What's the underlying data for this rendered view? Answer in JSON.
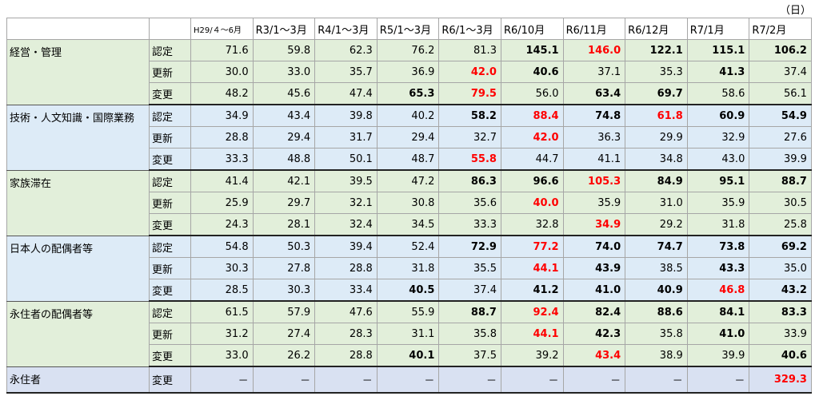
{
  "unit_label": "（日）",
  "headers": [
    "",
    "",
    "H29/４～6月",
    "R3/1～3月",
    "R4/1～3月",
    "R5/1～3月",
    "R6/1～3月",
    "R6/10月",
    "R6/11月",
    "R6/12月",
    "R7/1月",
    "R7/2月"
  ],
  "groups": [
    {
      "category": "経営・管理",
      "color": "green",
      "rows": [
        {
          "type": "認定",
          "values": [
            "71.6",
            "59.8",
            "62.3",
            "76.2",
            "81.3",
            "145.1",
            "146.0",
            "122.1",
            "115.1",
            "106.2"
          ],
          "styles": [
            "",
            "",
            "",
            "",
            "",
            "b",
            "r",
            "b",
            "b",
            "b"
          ]
        },
        {
          "type": "更新",
          "values": [
            "30.0",
            "33.0",
            "35.7",
            "36.9",
            "42.0",
            "40.6",
            "37.1",
            "35.3",
            "41.3",
            "37.4"
          ],
          "styles": [
            "",
            "",
            "",
            "",
            "r",
            "b",
            "",
            "",
            "b",
            ""
          ]
        },
        {
          "type": "変更",
          "values": [
            "48.2",
            "45.6",
            "47.4",
            "65.3",
            "79.5",
            "56.0",
            "63.4",
            "69.7",
            "58.6",
            "56.1"
          ],
          "styles": [
            "",
            "",
            "",
            "b",
            "r",
            "",
            "b",
            "b",
            "",
            ""
          ]
        }
      ]
    },
    {
      "category": "技術・人文知識・国際業務",
      "color": "blue",
      "rows": [
        {
          "type": "認定",
          "values": [
            "34.9",
            "43.4",
            "39.8",
            "40.2",
            "58.2",
            "88.4",
            "74.8",
            "61.8",
            "60.9",
            "54.9"
          ],
          "styles": [
            "",
            "",
            "",
            "",
            "b",
            "r",
            "b",
            "r",
            "b",
            "b"
          ]
        },
        {
          "type": "更新",
          "values": [
            "28.8",
            "29.4",
            "31.7",
            "29.4",
            "32.7",
            "42.0",
            "36.3",
            "29.9",
            "32.9",
            "27.6"
          ],
          "styles": [
            "",
            "",
            "",
            "",
            "",
            "r",
            "",
            "",
            "",
            ""
          ]
        },
        {
          "type": "変更",
          "values": [
            "33.3",
            "48.8",
            "50.1",
            "48.7",
            "55.8",
            "44.7",
            "41.1",
            "34.8",
            "43.0",
            "39.9"
          ],
          "styles": [
            "",
            "",
            "",
            "",
            "r",
            "",
            "",
            "",
            "",
            ""
          ]
        }
      ]
    },
    {
      "category": "家族滞在",
      "color": "green",
      "rows": [
        {
          "type": "認定",
          "values": [
            "41.4",
            "42.1",
            "39.5",
            "47.2",
            "86.3",
            "96.6",
            "105.3",
            "84.9",
            "95.1",
            "88.7"
          ],
          "styles": [
            "",
            "",
            "",
            "",
            "b",
            "b",
            "r",
            "b",
            "b",
            "b"
          ]
        },
        {
          "type": "更新",
          "values": [
            "25.9",
            "29.7",
            "32.1",
            "30.8",
            "35.6",
            "40.0",
            "35.9",
            "31.0",
            "35.9",
            "30.5"
          ],
          "styles": [
            "",
            "",
            "",
            "",
            "",
            "r",
            "",
            "",
            "",
            ""
          ]
        },
        {
          "type": "変更",
          "values": [
            "24.3",
            "28.1",
            "32.4",
            "34.5",
            "33.3",
            "32.8",
            "34.9",
            "29.2",
            "31.8",
            "25.8"
          ],
          "styles": [
            "",
            "",
            "",
            "",
            "",
            "",
            "r",
            "",
            "",
            ""
          ]
        }
      ]
    },
    {
      "category": "日本人の配偶者等",
      "color": "blue",
      "rows": [
        {
          "type": "認定",
          "values": [
            "54.8",
            "50.3",
            "39.4",
            "52.4",
            "72.9",
            "77.2",
            "74.0",
            "74.7",
            "73.8",
            "69.2"
          ],
          "styles": [
            "",
            "",
            "",
            "",
            "b",
            "r",
            "b",
            "b",
            "b",
            "b"
          ]
        },
        {
          "type": "更新",
          "values": [
            "30.3",
            "27.8",
            "28.8",
            "31.8",
            "35.5",
            "44.1",
            "43.9",
            "38.5",
            "43.3",
            "35.0"
          ],
          "styles": [
            "",
            "",
            "",
            "",
            "",
            "r",
            "b",
            "",
            "b",
            ""
          ]
        },
        {
          "type": "変更",
          "values": [
            "28.5",
            "30.3",
            "33.4",
            "40.5",
            "37.4",
            "41.2",
            "41.0",
            "40.9",
            "46.8",
            "43.2"
          ],
          "styles": [
            "",
            "",
            "",
            "b",
            "",
            "b",
            "b",
            "b",
            "r",
            "b"
          ]
        }
      ]
    },
    {
      "category": "永住者の配偶者等",
      "color": "green",
      "rows": [
        {
          "type": "認定",
          "values": [
            "61.5",
            "57.9",
            "47.6",
            "55.9",
            "88.7",
            "92.4",
            "82.4",
            "88.6",
            "84.1",
            "83.3"
          ],
          "styles": [
            "",
            "",
            "",
            "",
            "b",
            "r",
            "b",
            "b",
            "b",
            "b"
          ]
        },
        {
          "type": "更新",
          "values": [
            "31.2",
            "27.4",
            "28.3",
            "31.1",
            "35.8",
            "44.1",
            "42.3",
            "35.8",
            "41.0",
            "33.9"
          ],
          "styles": [
            "",
            "",
            "",
            "",
            "",
            "r",
            "b",
            "",
            "b",
            ""
          ]
        },
        {
          "type": "変更",
          "values": [
            "33.0",
            "26.2",
            "28.8",
            "40.1",
            "37.5",
            "39.2",
            "43.4",
            "38.9",
            "39.9",
            "40.6"
          ],
          "styles": [
            "",
            "",
            "",
            "b",
            "",
            "",
            "r",
            "",
            "",
            "b"
          ]
        }
      ]
    },
    {
      "category": "永住者",
      "color": "purple",
      "rows": [
        {
          "type": "変更",
          "values": [
            "－",
            "－",
            "－",
            "－",
            "－",
            "－",
            "－",
            "－",
            "－",
            "329.3"
          ],
          "styles": [
            "",
            "",
            "",
            "",
            "",
            "",
            "",
            "",
            "",
            "r"
          ]
        }
      ]
    }
  ]
}
